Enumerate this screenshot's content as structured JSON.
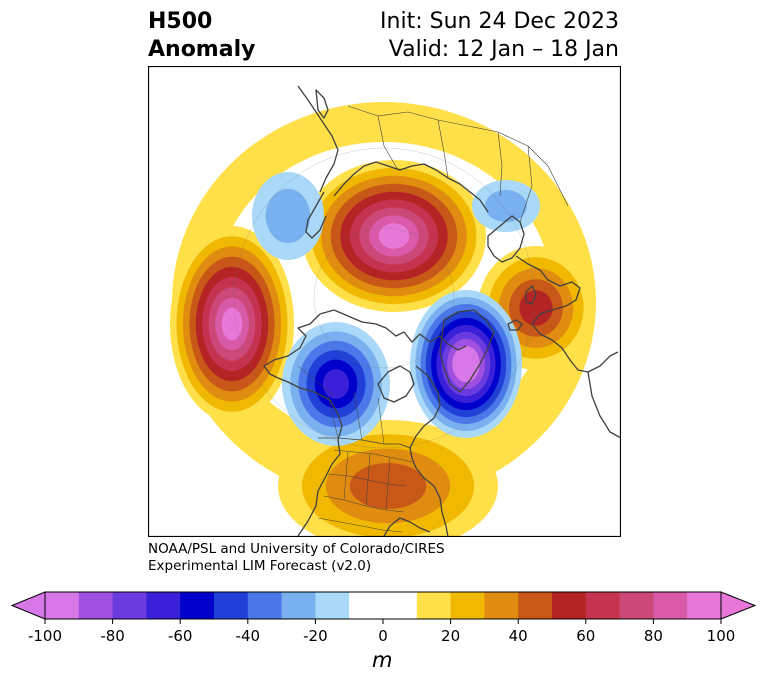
{
  "header": {
    "title_line1": "H500",
    "title_line2": "Anomaly",
    "init": "Init: Sun 24 Dec 2023",
    "valid": "Valid: 12 Jan – 18 Jan"
  },
  "credit": {
    "line1": "NOAA/PSL and University of Colorado/CIRES",
    "line2": "Experimental LIM Forecast (v2.0)"
  },
  "colorbar": {
    "unit": "m",
    "ticks": [
      "-100",
      "-80",
      "-60",
      "-40",
      "-20",
      "0",
      "20",
      "40",
      "60",
      "80",
      "100"
    ],
    "colors": [
      "#d878e8",
      "#a050e0",
      "#6a3ce0",
      "#3a20d8",
      "#0000cc",
      "#2040d8",
      "#4a78e8",
      "#78b0f0",
      "#aad8f8",
      "#ffffff",
      "#ffffff",
      "#ffe048",
      "#f0b800",
      "#e08c10",
      "#c85818",
      "#b42424",
      "#c43450",
      "#cc4878",
      "#d85aa8",
      "#e878d8"
    ]
  },
  "chart_data": {
    "type": "heatmap",
    "projection": "north-polar-stereographic",
    "variable": "H500 Anomaly",
    "units": "m",
    "levels": [
      -100,
      -90,
      -80,
      -70,
      -60,
      -50,
      -40,
      -30,
      -20,
      -10,
      0,
      10,
      20,
      30,
      40,
      50,
      60,
      70,
      80,
      90,
      100
    ],
    "anomaly_centers": [
      {
        "region": "North Pacific (Gulf of Alaska)",
        "anomaly_m": 90
      },
      {
        "region": "Arctic / Siberia",
        "anomaly_m": 90
      },
      {
        "region": "Eastern Europe",
        "anomaly_m": 50
      },
      {
        "region": "Southeastern US / Western Atlantic",
        "anomaly_m": 40
      },
      {
        "region": "Western Canada",
        "anomaly_m": -60
      },
      {
        "region": "North Atlantic (Greenland / Iceland)",
        "anomaly_m": -100
      },
      {
        "region": "East Asia",
        "anomaly_m": -20
      },
      {
        "region": "Siberian Arctic coast",
        "anomaly_m": -20
      }
    ]
  }
}
